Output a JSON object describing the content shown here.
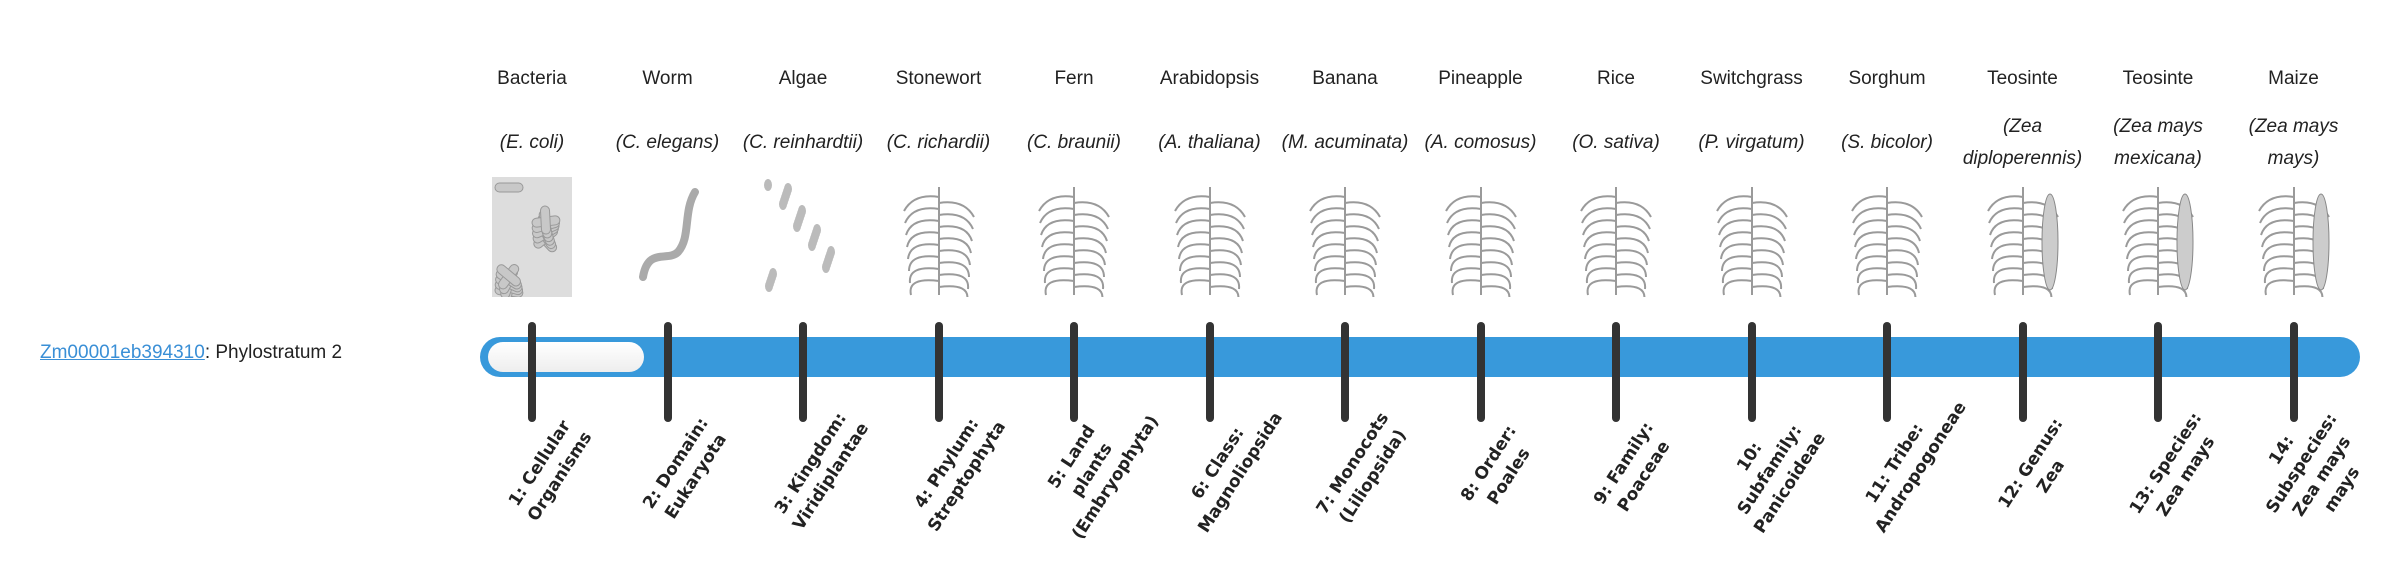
{
  "gene": {
    "id": "Zm00001eb394310",
    "suffix": ": Phylostratum 2",
    "phylostratum": 2,
    "total_strata": 14
  },
  "colors": {
    "bar": "#3899db",
    "tick": "#333333",
    "link": "#3a8fd6"
  },
  "organisms": [
    {
      "common": "Bacteria",
      "scientific": "(E. coli)",
      "icon": "bacteria-illustration",
      "stratum": "1: Cellular Organisms"
    },
    {
      "common": "Worm",
      "scientific": "(C. elegans)",
      "icon": "worm-illustration",
      "stratum": "2: Domain: Eukaryota"
    },
    {
      "common": "Algae",
      "scientific": "(C. reinhardtii)",
      "icon": "algae-illustration",
      "stratum": "3: Kingdom: Viridiplantae"
    },
    {
      "common": "Stonewort",
      "scientific": "(C. richardii)",
      "icon": "stonewort-illustration",
      "stratum": "4: Phylum: Streptophyta"
    },
    {
      "common": "Fern",
      "scientific": "(C. braunii)",
      "icon": "fern-illustration",
      "stratum": "5: Land plants (Embryophyta)"
    },
    {
      "common": "Arabidopsis",
      "scientific": "(A. thaliana)",
      "icon": "arabidopsis-illustration",
      "stratum": "6: Class: Magnoliopsida"
    },
    {
      "common": "Banana",
      "scientific": "(M. acuminata)",
      "icon": "banana-illustration",
      "stratum": "7: Monocots (Liliopsida)"
    },
    {
      "common": "Pineapple",
      "scientific": "(A. comosus)",
      "icon": "pineapple-illustration",
      "stratum": "8: Order: Poales"
    },
    {
      "common": "Rice",
      "scientific": "(O. sativa)",
      "icon": "rice-illustration",
      "stratum": "9: Family: Poaceae"
    },
    {
      "common": "Switchgrass",
      "scientific": "(P. virgatum)",
      "icon": "switchgrass-illustration",
      "stratum": "10: Subfamily: Panicoideae"
    },
    {
      "common": "Sorghum",
      "scientific": "(S. bicolor)",
      "icon": "sorghum-illustration",
      "stratum": "11: Tribe: Andropogoneae"
    },
    {
      "common": "Teosinte",
      "scientific": "(Zea diploperennis)",
      "icon": "teosinte-illustration",
      "stratum": "12: Genus: Zea"
    },
    {
      "common": "Teosinte",
      "scientific": "(Zea mays mexicana)",
      "icon": "teosinte-illustration",
      "stratum": "13: Species: Zea mays"
    },
    {
      "common": "Maize",
      "scientific": "(Zea mays mays)",
      "icon": "maize-illustration",
      "stratum": "14: Subspecies: Zea mays mays"
    }
  ]
}
